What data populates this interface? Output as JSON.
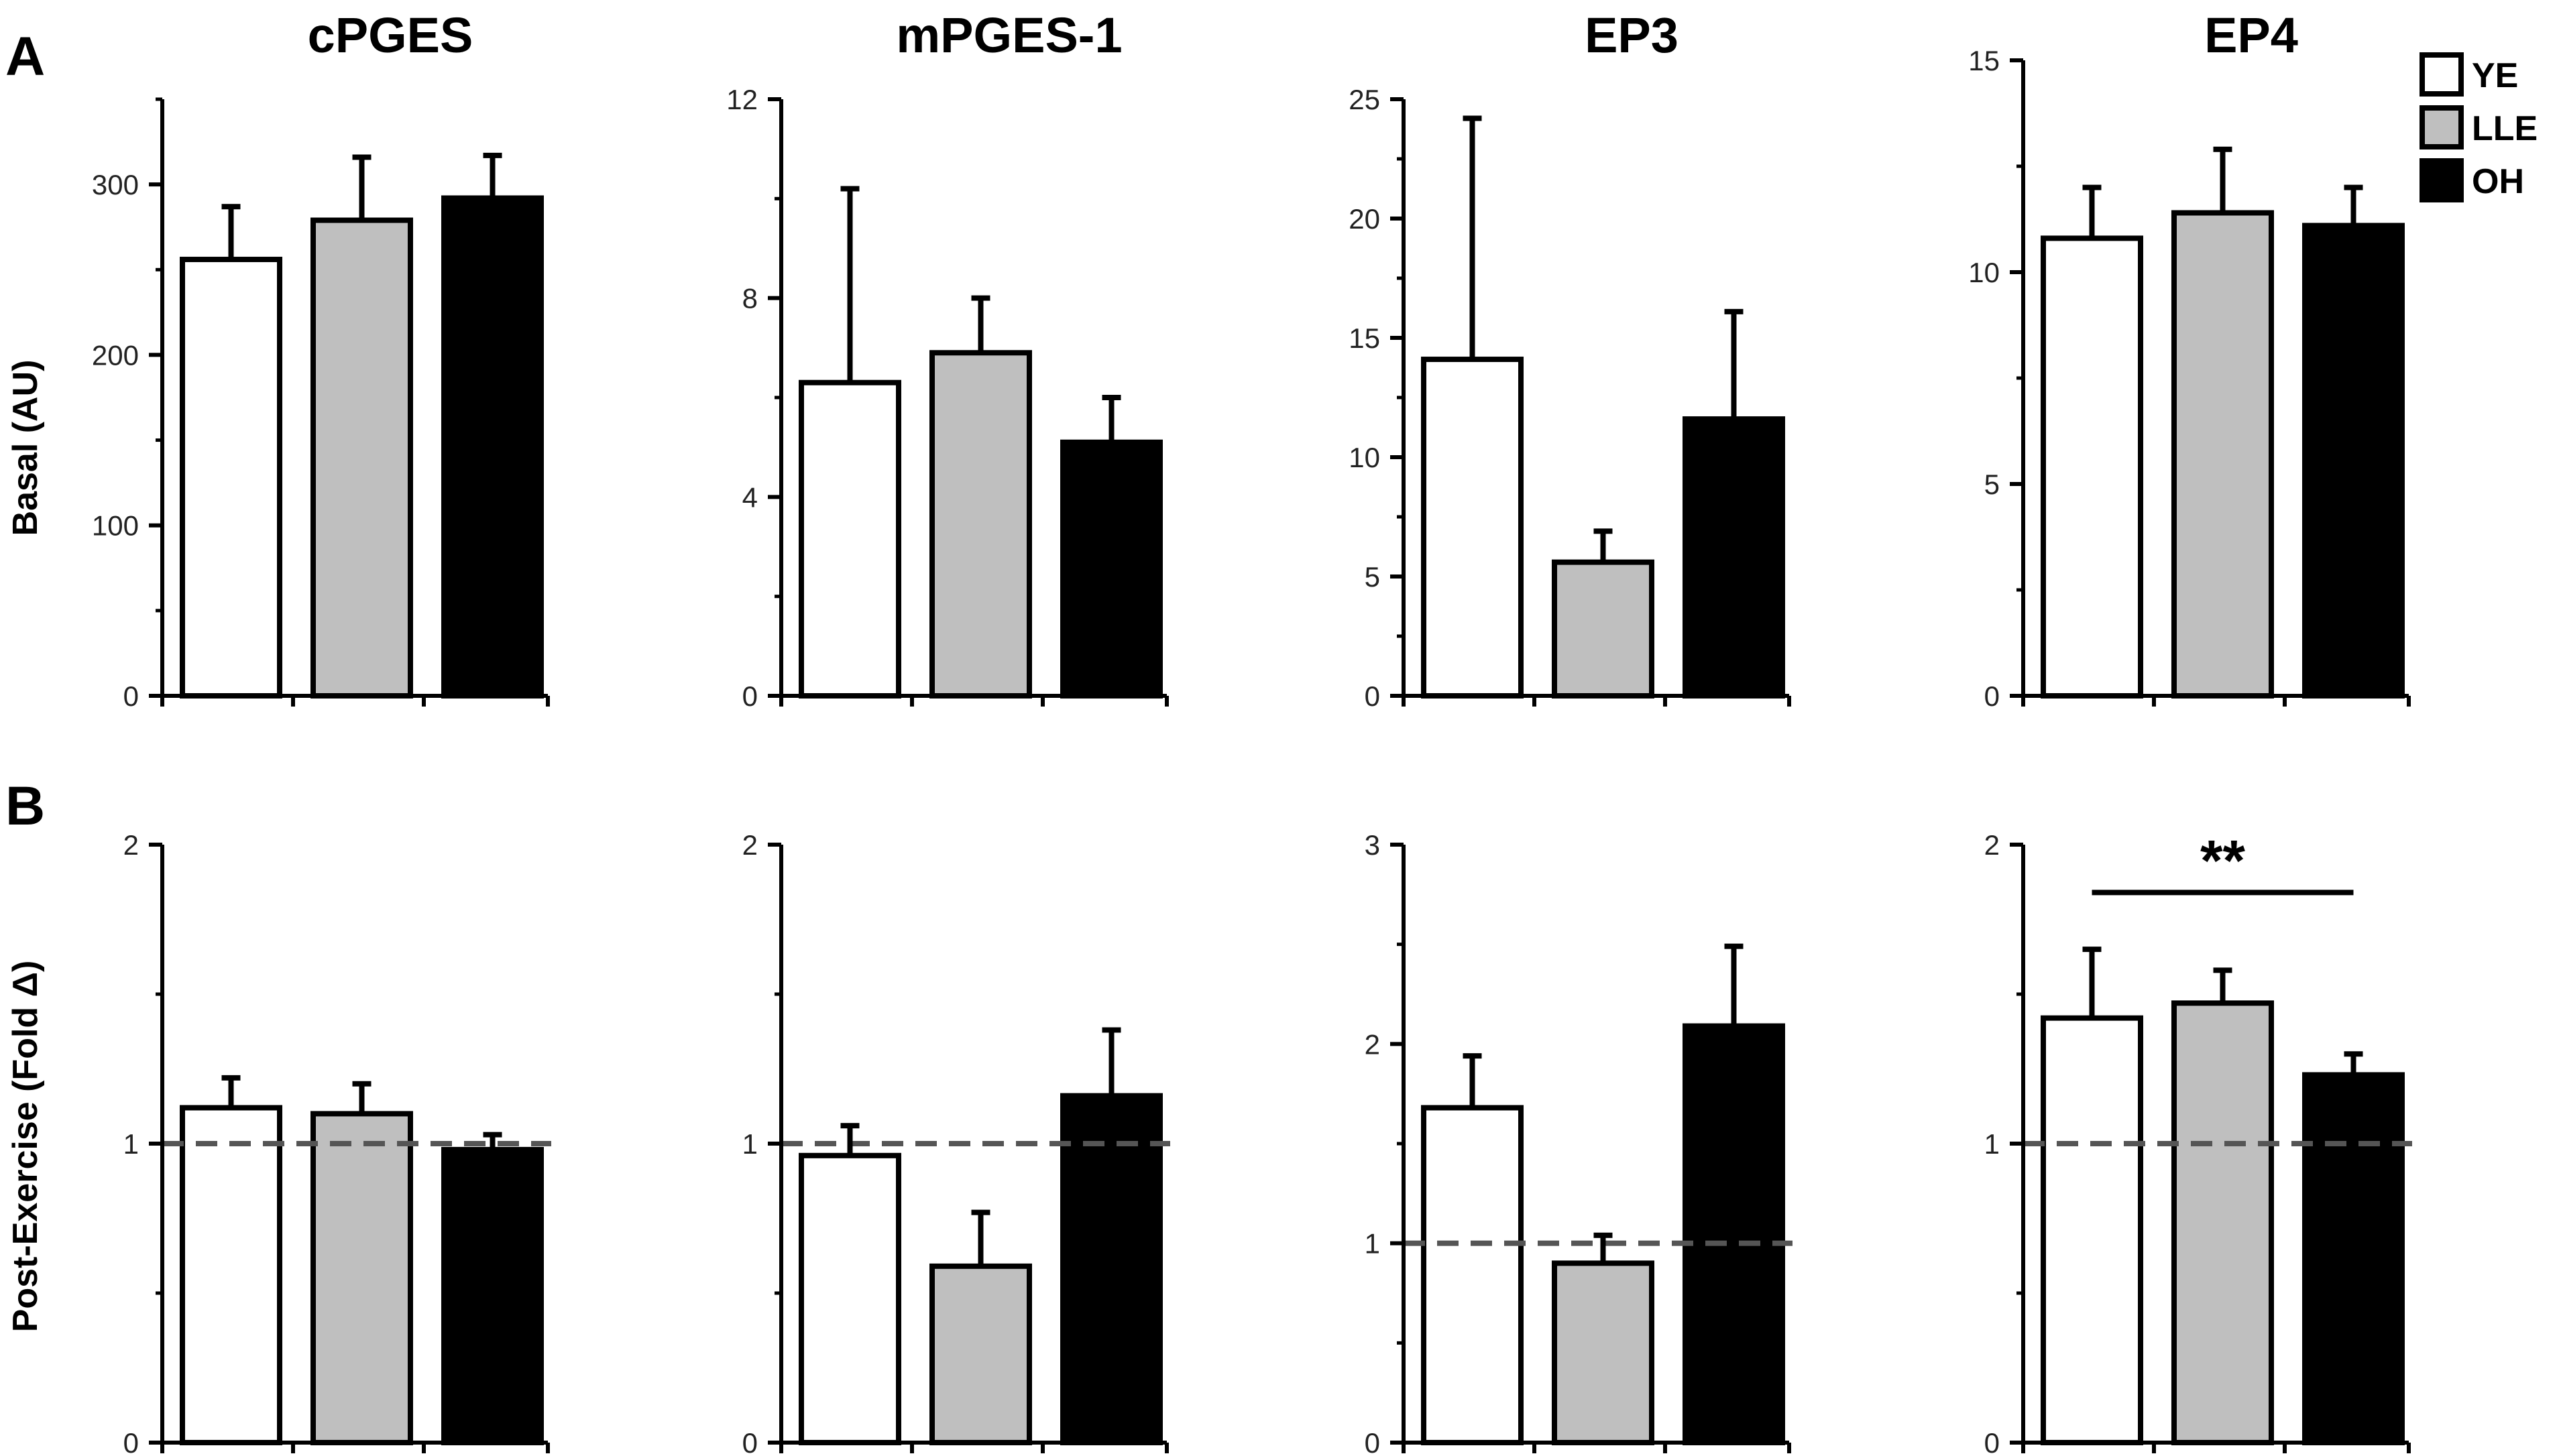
{
  "panels": [
    {
      "letter": "A",
      "ylabel": "Basal (AU)"
    },
    {
      "letter": "B",
      "ylabel": "Post-Exercise (Fold Δ)"
    }
  ],
  "legend": [
    {
      "name": "YE",
      "color": "#ffffff"
    },
    {
      "name": "LLE",
      "color": "#bfbfbf"
    },
    {
      "name": "OH",
      "color": "#000000"
    }
  ],
  "chart_data": [
    {
      "type": "bar",
      "panel": "A",
      "title": "cPGES",
      "categories": [
        "YE",
        "LLE",
        "OH"
      ],
      "values": [
        256,
        279,
        292
      ],
      "errors": [
        31,
        37,
        25
      ],
      "ylim": [
        0,
        350
      ],
      "yticks": [
        0,
        100,
        200,
        300
      ],
      "minor_step": 50
    },
    {
      "type": "bar",
      "panel": "A",
      "title": "mPGES-1",
      "categories": [
        "YE",
        "LLE",
        "OH"
      ],
      "values": [
        6.3,
        6.9,
        5.1
      ],
      "errors": [
        3.9,
        1.1,
        0.9
      ],
      "ylim": [
        0,
        12
      ],
      "yticks": [
        0,
        4,
        8,
        12
      ],
      "minor_step": 2
    },
    {
      "type": "bar",
      "panel": "A",
      "title": "EP3",
      "categories": [
        "YE",
        "LLE",
        "OH"
      ],
      "values": [
        14.1,
        5.6,
        11.6
      ],
      "errors": [
        10.1,
        1.3,
        4.5
      ],
      "ylim": [
        0,
        25
      ],
      "yticks": [
        0,
        5,
        10,
        15,
        20,
        25
      ],
      "minor_step": 2.5
    },
    {
      "type": "bar",
      "panel": "A",
      "title": "EP4",
      "categories": [
        "YE",
        "LLE",
        "OH"
      ],
      "values": [
        10.8,
        11.4,
        11.1
      ],
      "errors": [
        1.2,
        1.5,
        0.9
      ],
      "ylim": [
        0,
        15
      ],
      "yticks": [
        0,
        5,
        10,
        15
      ],
      "minor_step": 2.5
    },
    {
      "type": "bar",
      "panel": "B",
      "title": "cPGES",
      "categories": [
        "YE",
        "LLE",
        "OH"
      ],
      "values": [
        1.12,
        1.1,
        0.98
      ],
      "errors": [
        0.1,
        0.1,
        0.05
      ],
      "ylim": [
        0,
        2
      ],
      "yticks": [
        0,
        1,
        2
      ],
      "minor_step": 0.5,
      "reference_line": 1
    },
    {
      "type": "bar",
      "panel": "B",
      "title": "mPGES-1",
      "categories": [
        "YE",
        "LLE",
        "OH"
      ],
      "values": [
        0.96,
        0.59,
        1.16
      ],
      "errors": [
        0.1,
        0.18,
        0.22
      ],
      "ylim": [
        0,
        2
      ],
      "yticks": [
        0,
        1,
        2
      ],
      "minor_step": 0.5,
      "reference_line": 1
    },
    {
      "type": "bar",
      "panel": "B",
      "title": "EP3",
      "categories": [
        "YE",
        "LLE",
        "OH"
      ],
      "values": [
        1.68,
        0.9,
        2.09
      ],
      "errors": [
        0.26,
        0.14,
        0.4
      ],
      "ylim": [
        0,
        3
      ],
      "yticks": [
        0,
        1,
        2,
        3
      ],
      "minor_step": 0.5,
      "reference_line": 1
    },
    {
      "type": "bar",
      "panel": "B",
      "title": "EP4",
      "categories": [
        "YE",
        "LLE",
        "OH"
      ],
      "values": [
        1.42,
        1.47,
        1.23
      ],
      "errors": [
        0.23,
        0.11,
        0.07
      ],
      "ylim": [
        0,
        2
      ],
      "yticks": [
        0,
        1,
        2
      ],
      "minor_step": 0.5,
      "reference_line": 1,
      "significance": {
        "label": "**",
        "from": "YE",
        "to": "OH",
        "y": 1.84
      }
    }
  ]
}
